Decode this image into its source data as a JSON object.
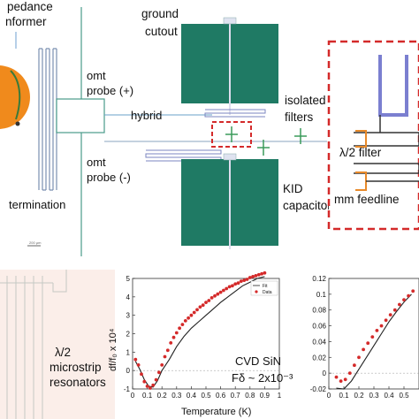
{
  "top": {
    "impedance_lines": [
      "pedance",
      "nformer"
    ],
    "termination": "termination",
    "omt_probe_plus": [
      "omt",
      "probe (+)"
    ],
    "omt_probe_minus": [
      "omt",
      "probe (-)"
    ],
    "hybrid": "hybrid",
    "ground_cutout": [
      "ground",
      "cutout"
    ],
    "isolated_filters": [
      "isolated",
      "filters"
    ],
    "kid_capacitor": [
      "KID",
      "capacitor"
    ],
    "half_wave_filter": "λ/2 filter",
    "mm_feedline": "mm feedline",
    "scale_bar": "200 μm"
  },
  "bottom_left": {
    "label_lines": [
      "λ/2",
      "microstrip",
      "resonators"
    ]
  },
  "chart_data": [
    {
      "type": "scatter",
      "title": "",
      "xlabel": "Temperature (K)",
      "ylabel": "df/f0 x 10^4",
      "ylabel_display": "df/f₀ x 10⁴",
      "xlim": [
        0,
        1.0
      ],
      "ylim": [
        -1,
        5
      ],
      "x_ticks": [
        "0",
        "0.1",
        "0.2",
        "0.3",
        "0.4",
        "0.5",
        "0.6",
        "0.7",
        "0.8",
        "0.9",
        "1"
      ],
      "y_ticks": [
        "-1",
        "0",
        "1",
        "2",
        "3",
        "4",
        "5"
      ],
      "annotation_lines": [
        "CVD SiN",
        "Fδ ~ 2x10⁻³"
      ],
      "legend": {
        "placement": "top-right",
        "entries": [
          "Fit",
          "Data"
        ]
      },
      "series": [
        {
          "name": "Fit",
          "style": "line",
          "color": "#222222",
          "x": [
            0.02,
            0.05,
            0.08,
            0.11,
            0.14,
            0.17,
            0.2,
            0.25,
            0.3,
            0.35,
            0.4,
            0.45,
            0.5,
            0.55,
            0.6,
            0.65,
            0.7,
            0.75,
            0.8,
            0.85,
            0.9
          ],
          "y": [
            0.5,
            0.05,
            -0.5,
            -0.85,
            -0.9,
            -0.55,
            0.0,
            0.6,
            1.3,
            1.85,
            2.3,
            2.65,
            3.0,
            3.35,
            3.7,
            4.0,
            4.3,
            4.6,
            4.8,
            5.0,
            5.1
          ]
        },
        {
          "name": "Data",
          "style": "points",
          "color": "#d42a2a",
          "x": [
            0.02,
            0.04,
            0.06,
            0.08,
            0.1,
            0.12,
            0.14,
            0.16,
            0.18,
            0.2,
            0.22,
            0.24,
            0.26,
            0.28,
            0.3,
            0.32,
            0.34,
            0.36,
            0.38,
            0.4,
            0.42,
            0.44,
            0.46,
            0.48,
            0.5,
            0.52,
            0.54,
            0.56,
            0.58,
            0.6,
            0.62,
            0.64,
            0.66,
            0.68,
            0.7,
            0.72,
            0.74,
            0.76,
            0.78,
            0.8,
            0.82,
            0.84,
            0.86,
            0.88,
            0.9
          ],
          "y": [
            0.6,
            0.3,
            -0.2,
            -0.6,
            -0.85,
            -0.95,
            -0.8,
            -0.5,
            -0.1,
            0.3,
            0.75,
            1.1,
            1.5,
            1.8,
            2.05,
            2.3,
            2.5,
            2.7,
            2.85,
            3.0,
            3.15,
            3.3,
            3.45,
            3.55,
            3.7,
            3.8,
            3.95,
            4.05,
            4.15,
            4.25,
            4.35,
            4.45,
            4.55,
            4.6,
            4.7,
            4.75,
            4.85,
            4.9,
            4.95,
            5.05,
            5.1,
            5.15,
            5.2,
            5.25,
            5.3
          ]
        }
      ]
    },
    {
      "type": "scatter",
      "title": "",
      "xlabel": "",
      "ylabel": "",
      "xlim": [
        0,
        0.6
      ],
      "ylim": [
        -0.02,
        0.12
      ],
      "x_ticks": [
        "0",
        "0.1",
        "0.2",
        "0.3",
        "0.4",
        "0.5"
      ],
      "y_ticks": [
        "-0.02",
        "0",
        "0.02",
        "0.04",
        "0.06",
        "0.08",
        "0.1",
        "0.12"
      ],
      "series": [
        {
          "name": "",
          "style": "line",
          "color": "#222222",
          "x": [
            0.05,
            0.1,
            0.15,
            0.2,
            0.25,
            0.3,
            0.35,
            0.4,
            0.45,
            0.5,
            0.55
          ],
          "y": [
            -0.019,
            -0.02,
            -0.01,
            0.005,
            0.02,
            0.035,
            0.05,
            0.065,
            0.078,
            0.09,
            0.1
          ]
        },
        {
          "name": "",
          "style": "points",
          "color": "#d42a2a",
          "x": [
            0.05,
            0.08,
            0.11,
            0.14,
            0.17,
            0.2,
            0.23,
            0.26,
            0.29,
            0.32,
            0.35,
            0.38,
            0.41,
            0.44,
            0.47,
            0.5,
            0.53,
            0.56
          ],
          "y": [
            -0.005,
            -0.01,
            -0.008,
            0.0,
            0.01,
            0.02,
            0.03,
            0.038,
            0.046,
            0.054,
            0.06,
            0.067,
            0.074,
            0.08,
            0.087,
            0.093,
            0.098,
            0.104
          ]
        }
      ]
    }
  ]
}
